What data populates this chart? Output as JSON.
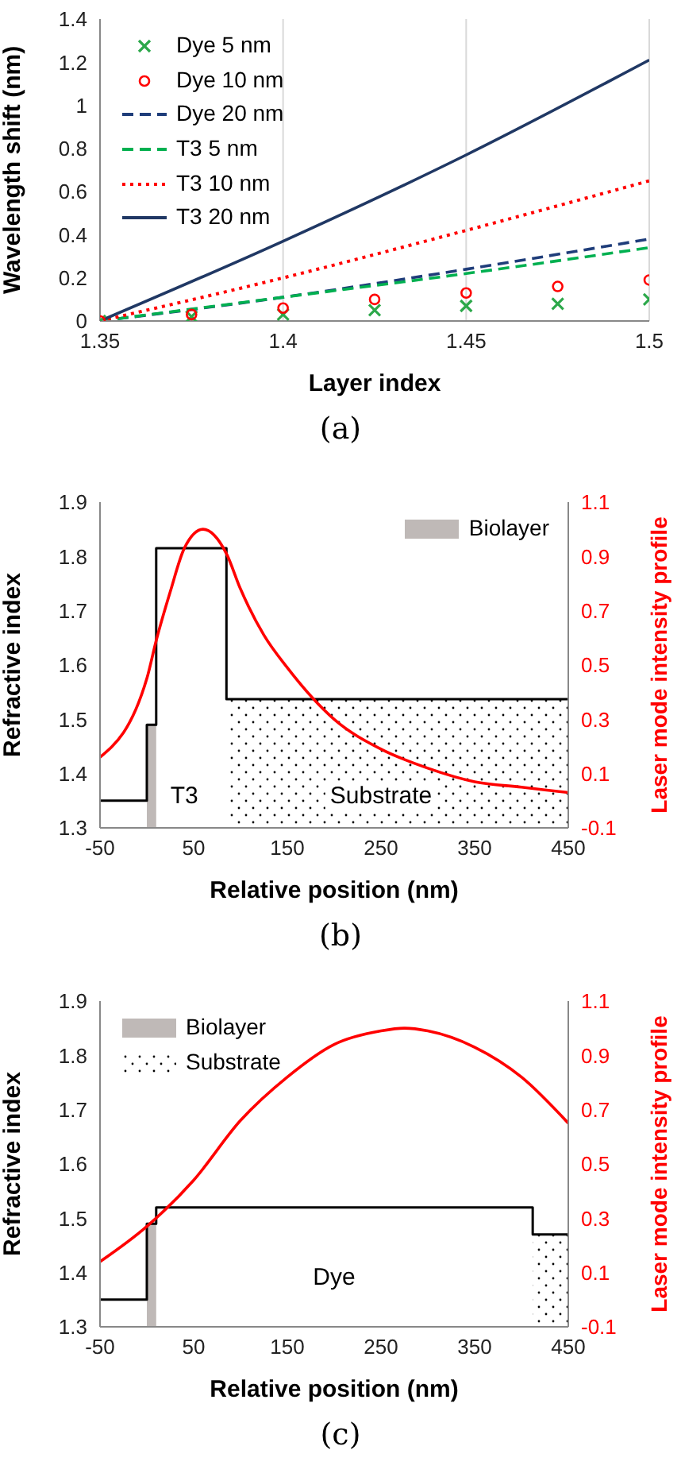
{
  "chart_data": [
    {
      "type": "line",
      "xlabel": "Layer index",
      "ylabel": "Wavelength shift (nm)",
      "annotations": [
        "(a)"
      ],
      "xlim": [
        1.35,
        1.5
      ],
      "xticks": [
        1.35,
        1.4,
        1.45,
        1.5
      ],
      "ylim": [
        0,
        1.4
      ],
      "yticks": [
        0,
        0.2,
        0.4,
        0.6,
        0.8,
        1,
        1.2,
        1.4
      ],
      "grid": "x",
      "legend": "top left",
      "series": [
        {
          "name": "Dye 5 nm",
          "type": "scatter",
          "marker": "cross",
          "color": "#2ca84a",
          "x": [
            1.35,
            1.375,
            1.4,
            1.425,
            1.45,
            1.475,
            1.5
          ],
          "values": [
            0,
            0.02,
            0.03,
            0.05,
            0.07,
            0.08,
            0.1
          ]
        },
        {
          "name": "Dye 10 nm",
          "type": "scatter",
          "marker": "circle",
          "color": "#ff0000",
          "x": [
            1.35,
            1.375,
            1.4,
            1.425,
            1.45,
            1.475,
            1.5
          ],
          "values": [
            0,
            0.03,
            0.06,
            0.1,
            0.13,
            0.16,
            0.19
          ]
        },
        {
          "name": "Dye 20 nm",
          "line_style": "dashed",
          "color": "#1f3d7a",
          "x": [
            1.35,
            1.4,
            1.45,
            1.5
          ],
          "values": [
            0,
            0.11,
            0.24,
            0.38
          ]
        },
        {
          "name": "T3 5 nm",
          "line_style": "dashed",
          "color": "#00b050",
          "x": [
            1.35,
            1.4,
            1.45,
            1.5
          ],
          "values": [
            0,
            0.11,
            0.22,
            0.34
          ]
        },
        {
          "name": "T3 10 nm",
          "line_style": "dotted",
          "color": "#ff0000",
          "x": [
            1.35,
            1.4,
            1.45,
            1.5
          ],
          "values": [
            0,
            0.2,
            0.42,
            0.65
          ]
        },
        {
          "name": "T3 20 nm",
          "line_style": "solid",
          "color": "#203864",
          "x": [
            1.35,
            1.4,
            1.45,
            1.5
          ],
          "values": [
            0,
            0.37,
            0.77,
            1.21
          ]
        }
      ]
    },
    {
      "type": "line",
      "xlabel": "Relative position (nm)",
      "ylabel": "Refractive index",
      "y2label": "Laser mode intensity profile",
      "annotations": [
        "T3",
        "Substrate",
        "(b)"
      ],
      "xlim": [
        -50,
        450
      ],
      "xticks": [
        -50,
        50,
        150,
        250,
        350,
        450
      ],
      "ylim": [
        1.3,
        1.9
      ],
      "yticks": [
        1.3,
        1.4,
        1.5,
        1.6,
        1.7,
        1.8,
        1.9
      ],
      "y2lim": [
        -0.1,
        1.1
      ],
      "y2ticks": [
        -0.1,
        0.1,
        0.3,
        0.5,
        0.7,
        0.9,
        1.1
      ],
      "legend": "top right",
      "series": [
        {
          "name": "Biolayer",
          "type": "area",
          "color": "#bfb9b7",
          "x": [
            0,
            10
          ],
          "values": [
            1.49,
            1.49
          ]
        },
        {
          "type": "area",
          "line_style": "dotted",
          "color": "#000000",
          "x": [
            85,
            450
          ],
          "values": [
            1.537,
            1.537
          ]
        },
        {
          "type": "step",
          "color": "#000000",
          "x": [
            -50,
            0,
            10,
            85,
            450
          ],
          "values": [
            1.35,
            1.49,
            1.815,
            1.537,
            1.537
          ]
        },
        {
          "axis": "y2",
          "color": "#ff0000",
          "x": [
            -50,
            0,
            10,
            25,
            40,
            60,
            85,
            100,
            125,
            150,
            200,
            250,
            300,
            350,
            400,
            450
          ],
          "values": [
            0.16,
            0.45,
            0.59,
            0.77,
            0.93,
            1,
            0.91,
            0.78,
            0.61,
            0.49,
            0.3,
            0.19,
            0.12,
            0.07,
            0.05,
            0.03
          ]
        }
      ]
    },
    {
      "type": "line",
      "xlabel": "Relative position (nm)",
      "ylabel": "Refractive index",
      "y2label": "Laser mode intensity profile",
      "annotations": [
        "Dye",
        "(c)"
      ],
      "xlim": [
        -50,
        450
      ],
      "xticks": [
        -50,
        50,
        150,
        250,
        350,
        450
      ],
      "ylim": [
        1.3,
        1.9
      ],
      "yticks": [
        1.3,
        1.4,
        1.5,
        1.6,
        1.7,
        1.8,
        1.9
      ],
      "y2lim": [
        -0.1,
        1.1
      ],
      "y2ticks": [
        -0.1,
        0.1,
        0.3,
        0.5,
        0.7,
        0.9,
        1.1
      ],
      "legend": "top left",
      "series": [
        {
          "name": "Biolayer",
          "type": "area",
          "color": "#bfb9b7",
          "x": [
            0,
            10
          ],
          "values": [
            1.49,
            1.49
          ]
        },
        {
          "name": "Substrate",
          "type": "area",
          "line_style": "dotted",
          "color": "#000000",
          "x": [
            412,
            450
          ],
          "values": [
            1.47,
            1.47
          ]
        },
        {
          "type": "step",
          "color": "#000000",
          "x": [
            -50,
            0,
            10,
            412,
            450
          ],
          "values": [
            1.35,
            1.49,
            1.52,
            1.47,
            1.47
          ]
        },
        {
          "axis": "y2",
          "color": "#ff0000",
          "x": [
            -50,
            0,
            50,
            100,
            150,
            200,
            250,
            275,
            300,
            350,
            400,
            450
          ],
          "values": [
            0.14,
            0.27,
            0.44,
            0.66,
            0.82,
            0.94,
            0.99,
            1,
            0.99,
            0.93,
            0.82,
            0.65
          ]
        }
      ]
    }
  ]
}
